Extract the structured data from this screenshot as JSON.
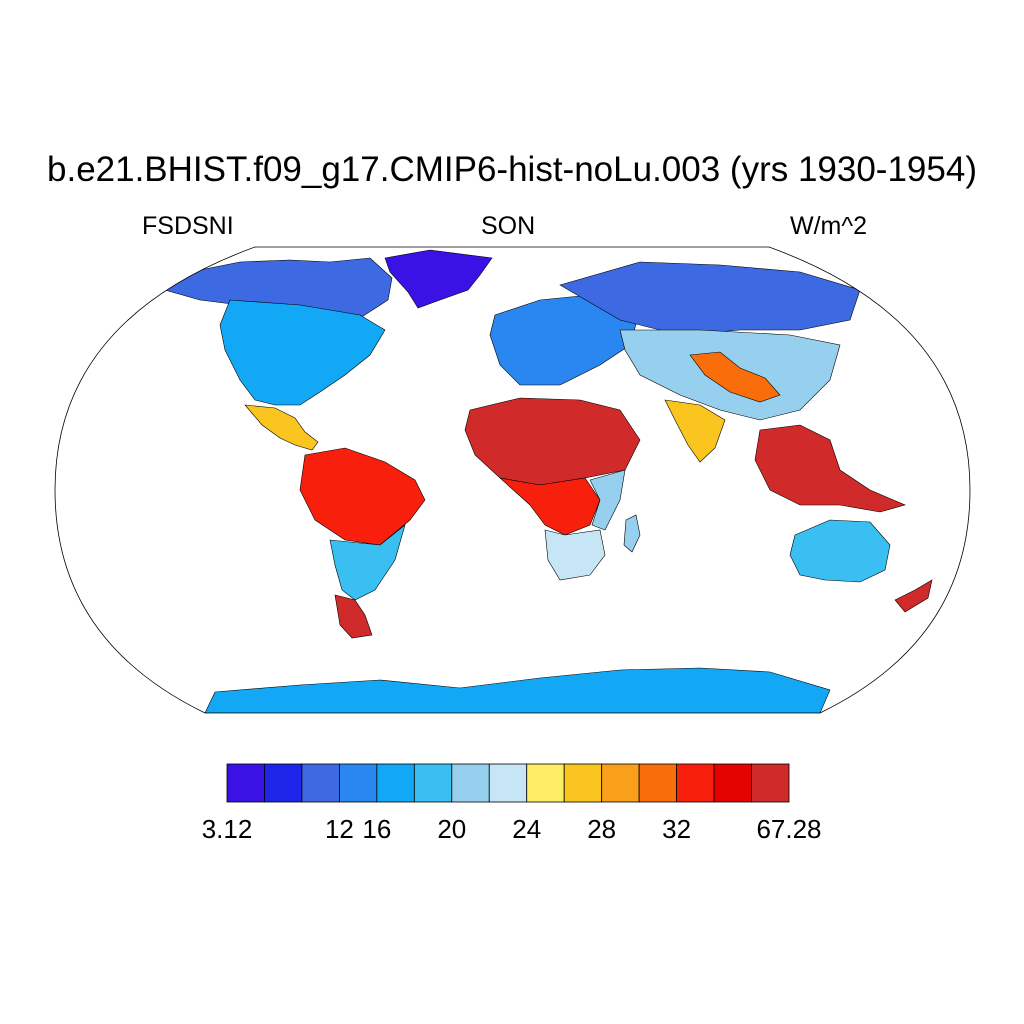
{
  "title": "b.e21.BHIST.f09_g17.CMIP6-hist-noLu.003 (yrs 1930-1954)",
  "left_label": "FSDSNI",
  "center_label": "SON",
  "right_label": "W/m^2",
  "projection": "robinson",
  "colorbar": {
    "colors": [
      "#3a12e6",
      "#1c25e8",
      "#3d6ae3",
      "#2a86f0",
      "#13a8f5",
      "#3abff2",
      "#96d0ee",
      "#c6e6f6",
      "#fdee65",
      "#fbc520",
      "#f9a01a",
      "#fa6d0b",
      "#f8200c",
      "#e50302",
      "#d12a2a"
    ],
    "tick_labels": [
      "3.12",
      "12",
      "16",
      "20",
      "24",
      "28",
      "32",
      "67.28"
    ],
    "tick_boundaries": [
      0,
      3,
      4,
      6,
      8,
      10,
      12,
      15
    ]
  },
  "regions": [
    {
      "name": "greenland",
      "level": 0
    },
    {
      "name": "arctic-canada",
      "level": 2
    },
    {
      "name": "north-america",
      "level": 4
    },
    {
      "name": "mexico-central-america",
      "level": 9
    },
    {
      "name": "amazon",
      "level": 12
    },
    {
      "name": "southern-south-america",
      "level": 5
    },
    {
      "name": "patagonia",
      "level": 14
    },
    {
      "name": "europe",
      "level": 3
    },
    {
      "name": "northern-asia",
      "level": 2
    },
    {
      "name": "central-asia",
      "level": 6
    },
    {
      "name": "tibet-china",
      "level": 11
    },
    {
      "name": "india",
      "level": 9
    },
    {
      "name": "sahara-africa",
      "level": 14
    },
    {
      "name": "central-africa",
      "level": 12
    },
    {
      "name": "east-africa",
      "level": 6
    },
    {
      "name": "southern-africa",
      "level": 7
    },
    {
      "name": "madagascar",
      "level": 6
    },
    {
      "name": "southeast-asia",
      "level": 14
    },
    {
      "name": "australia",
      "level": 5
    },
    {
      "name": "new-zealand",
      "level": 14
    },
    {
      "name": "antarctica",
      "level": 4
    }
  ]
}
